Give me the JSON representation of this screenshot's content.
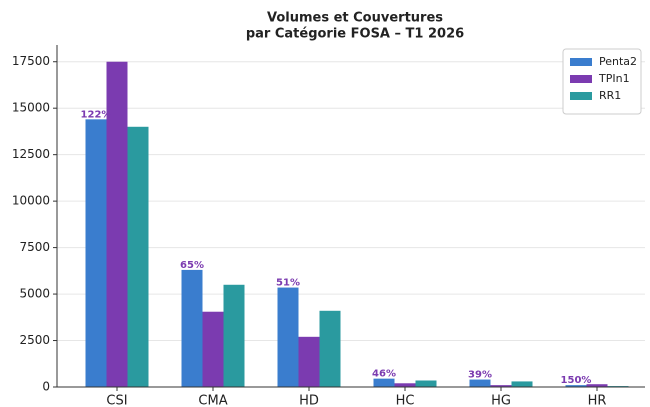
{
  "chart_data": {
    "type": "bar",
    "title": [
      "Volumes et Couvertures",
      "par Catégorie FOSA – T1 2026"
    ],
    "categories": [
      "CSI",
      "CMA",
      "HD",
      "HC",
      "HG",
      "HR"
    ],
    "series": [
      {
        "name": "Penta2",
        "color": "#3a7dce",
        "values": [
          14400,
          6300,
          5350,
          450,
          400,
          100
        ]
      },
      {
        "name": "TPIn1",
        "color": "#7b3bb0",
        "values": [
          17500,
          4050,
          2700,
          200,
          100,
          150
        ]
      },
      {
        "name": "RR1",
        "color": "#2a9a9f",
        "values": [
          14000,
          5500,
          4100,
          350,
          300,
          50
        ]
      }
    ],
    "annotations": [
      "122%",
      "65%",
      "51%",
      "46%",
      "39%",
      "150%"
    ],
    "annotation_color": "#7b3bb0",
    "ylim": [
      0,
      18400
    ],
    "yticks": [
      0,
      2500,
      5000,
      7500,
      10000,
      12500,
      15000,
      17500
    ],
    "grid": true,
    "legend": "upper right"
  }
}
